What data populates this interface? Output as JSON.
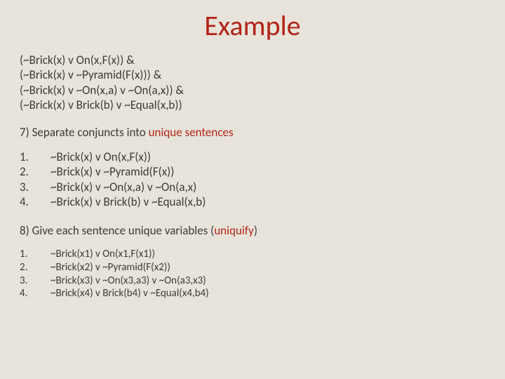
{
  "title": "Example",
  "title_color": "#b22418",
  "body_color": "#3a3a3a",
  "background_color": "#e8e4db",
  "font_family": "Calibri",
  "clauses": [
    "(~Brick(x) v On(x,F(x)) &",
    "(~Brick(x) v ~Pyramid(F(x))) &",
    "(~Brick(x) v ~On(x,a) v ~On(a,x)) &",
    "(~Brick(x) v Brick(b) v ~Equal(x,b))"
  ],
  "step7": {
    "prefix": "7) Separate conjuncts into ",
    "accent": "unique sentences",
    "items": [
      {
        "n": "1.",
        "text": "~Brick(x) v On(x,F(x))"
      },
      {
        "n": "2.",
        "text": "~Brick(x) v ~Pyramid(F(x))"
      },
      {
        "n": "3.",
        "text": "~Brick(x) v ~On(x,a) v ~On(a,x)"
      },
      {
        "n": "4.",
        "text": "~Brick(x) v Brick(b) v ~Equal(x,b)"
      }
    ]
  },
  "step8": {
    "prefix": "8) Give each sentence unique variables (",
    "accent": "uniquify",
    "suffix": ")",
    "items": [
      {
        "n": "1.",
        "text": "~Brick(x1) v On(x1,F(x1))"
      },
      {
        "n": "2.",
        "text": "~Brick(x2) v ~Pyramid(F(x2))"
      },
      {
        "n": "3.",
        "text": "~Brick(x3) v ~On(x3,a3) v ~On(a3,x3)"
      },
      {
        "n": "4.",
        "text": "~Brick(x4) v Brick(b4) v ~Equal(x4,b4)"
      }
    ]
  }
}
